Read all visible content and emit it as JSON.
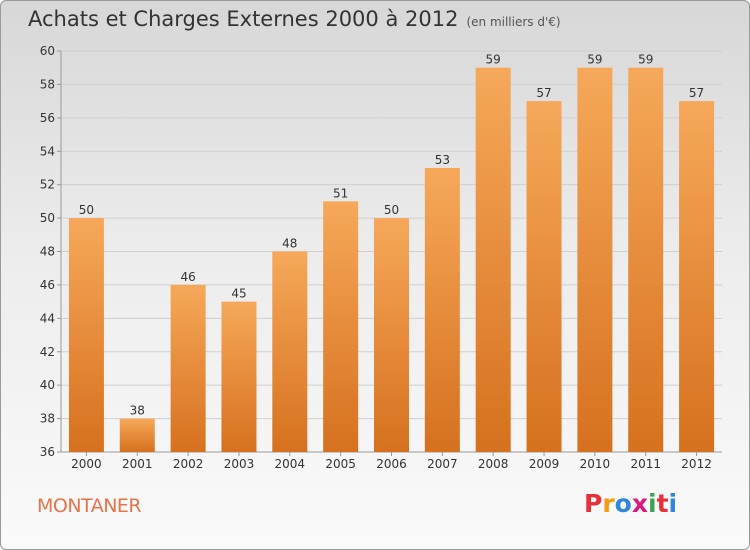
{
  "header": {
    "title": "Achats et Charges Externes 2000 à 2012",
    "unit": "(en milliers d'€)"
  },
  "footer": {
    "commune": "MONTANER",
    "logo": [
      "P",
      "r",
      "o",
      "x",
      "i",
      "t",
      "i"
    ],
    "logo_colors": [
      "#e8303a",
      "#f39c12",
      "#2e86de",
      "#d81b7a",
      "#3aa655",
      "#e8303a",
      "#2e86de"
    ]
  },
  "colors": {
    "bar_top": "#f6a85a",
    "bar_bottom": "#d6711e",
    "axis": "#999999",
    "grid": "#cfcfcf"
  },
  "chart_data": {
    "type": "bar",
    "title": "Achats et Charges Externes 2000 à 2012",
    "subtitle": "(en milliers d'€)",
    "categories": [
      "2000",
      "2001",
      "2002",
      "2003",
      "2004",
      "2005",
      "2006",
      "2007",
      "2008",
      "2009",
      "2010",
      "2011",
      "2012"
    ],
    "values": [
      50,
      38,
      46,
      45,
      48,
      51,
      50,
      53,
      59,
      57,
      59,
      59,
      57
    ],
    "ylim": [
      36,
      60
    ],
    "yticks": [
      36,
      38,
      40,
      42,
      44,
      46,
      48,
      50,
      52,
      54,
      56,
      58,
      60
    ],
    "grid": true
  }
}
